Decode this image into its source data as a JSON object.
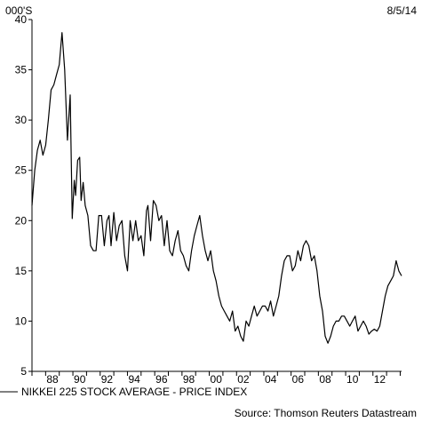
{
  "chart_data": {
    "type": "line",
    "unit_label": "000'S",
    "date_label": "8/5/14",
    "source": "Source: Thomson Reuters Datastream",
    "ylim": [
      5,
      40
    ],
    "yticks": [
      5,
      10,
      15,
      20,
      25,
      30,
      35,
      40
    ],
    "xlim": [
      1987.0,
      2014.1
    ],
    "xticks": [
      {
        "year": 1988,
        "label": "88"
      },
      {
        "year": 1990,
        "label": "90"
      },
      {
        "year": 1992,
        "label": "92"
      },
      {
        "year": 1994,
        "label": "94"
      },
      {
        "year": 1996,
        "label": "96"
      },
      {
        "year": 1998,
        "label": "98"
      },
      {
        "year": 2000,
        "label": "00"
      },
      {
        "year": 2002,
        "label": "02"
      },
      {
        "year": 2004,
        "label": "04"
      },
      {
        "year": 2006,
        "label": "06"
      },
      {
        "year": 2008,
        "label": "08"
      },
      {
        "year": 2010,
        "label": "10"
      },
      {
        "year": 2012,
        "label": "12"
      }
    ],
    "grid": false,
    "legend_position": "bottom-left",
    "series": [
      {
        "name": "NIKKEI 225 STOCK AVERAGE - PRICE INDEX",
        "color": "#000000",
        "x": [
          1987.0,
          1987.2,
          1987.4,
          1987.6,
          1987.8,
          1988.0,
          1988.2,
          1988.4,
          1988.6,
          1988.8,
          1989.0,
          1989.2,
          1989.4,
          1989.6,
          1989.8,
          1989.95,
          1990.1,
          1990.2,
          1990.35,
          1990.5,
          1990.6,
          1990.75,
          1990.9,
          1991.1,
          1991.3,
          1991.5,
          1991.7,
          1991.9,
          1992.1,
          1992.3,
          1992.5,
          1992.65,
          1992.8,
          1993.0,
          1993.2,
          1993.4,
          1993.6,
          1993.8,
          1994.0,
          1994.2,
          1994.4,
          1994.6,
          1994.8,
          1995.0,
          1995.2,
          1995.4,
          1995.5,
          1995.7,
          1995.9,
          1996.1,
          1996.3,
          1996.5,
          1996.7,
          1996.9,
          1997.1,
          1997.3,
          1997.5,
          1997.7,
          1997.9,
          1998.1,
          1998.3,
          1998.5,
          1998.7,
          1998.9,
          1999.1,
          1999.3,
          1999.5,
          1999.7,
          1999.9,
          2000.1,
          2000.3,
          2000.5,
          2000.7,
          2000.9,
          2001.1,
          2001.3,
          2001.5,
          2001.7,
          2001.9,
          2002.1,
          2002.3,
          2002.5,
          2002.7,
          2002.9,
          2003.1,
          2003.3,
          2003.5,
          2003.7,
          2003.9,
          2004.1,
          2004.3,
          2004.5,
          2004.7,
          2004.9,
          2005.1,
          2005.3,
          2005.5,
          2005.7,
          2005.9,
          2006.1,
          2006.3,
          2006.5,
          2006.7,
          2006.9,
          2007.1,
          2007.3,
          2007.5,
          2007.7,
          2007.9,
          2008.1,
          2008.3,
          2008.5,
          2008.7,
          2008.9,
          2009.1,
          2009.3,
          2009.5,
          2009.7,
          2009.9,
          2010.1,
          2010.3,
          2010.5,
          2010.7,
          2010.9,
          2011.1,
          2011.3,
          2011.5,
          2011.7,
          2011.9,
          2012.1,
          2012.3,
          2012.5,
          2012.7,
          2012.9,
          2013.1,
          2013.3,
          2013.5,
          2013.7,
          2013.9,
          2014.1
        ],
        "y": [
          21.5,
          25.0,
          27.0,
          28.0,
          26.5,
          27.5,
          30.0,
          33.0,
          33.5,
          34.5,
          35.5,
          38.7,
          35.0,
          28.0,
          32.5,
          20.2,
          24.0,
          22.5,
          26.0,
          26.3,
          22.0,
          23.8,
          21.5,
          20.5,
          17.5,
          17.0,
          17.0,
          20.5,
          20.5,
          17.5,
          20.0,
          20.5,
          17.5,
          20.8,
          18.0,
          19.5,
          20.0,
          16.5,
          15.0,
          20.0,
          18.0,
          20.0,
          18.0,
          18.5,
          16.5,
          21.0,
          21.5,
          18.0,
          22.0,
          21.5,
          20.0,
          20.5,
          17.5,
          20.0,
          17.0,
          16.5,
          18.0,
          19.0,
          17.0,
          16.5,
          15.5,
          15.0,
          17.0,
          18.5,
          19.5,
          20.5,
          18.5,
          17.0,
          16.0,
          17.0,
          15.0,
          14.0,
          12.5,
          11.5,
          11.0,
          10.5,
          10.0,
          11.0,
          9.0,
          9.5,
          8.5,
          8.0,
          10.0,
          9.5,
          10.5,
          11.5,
          10.5,
          11.0,
          11.5,
          11.5,
          11.0,
          12.0,
          10.5,
          11.5,
          12.5,
          14.5,
          16.0,
          16.5,
          16.5,
          15.0,
          15.5,
          17.0,
          16.0,
          17.5,
          18.0,
          17.5,
          16.0,
          16.5,
          15.0,
          12.5,
          11.0,
          8.5,
          7.8,
          8.5,
          9.5,
          10.0,
          10.0,
          10.5,
          10.5,
          10.0,
          9.5,
          10.0,
          10.5,
          9.0,
          9.5,
          10.0,
          9.5,
          8.7,
          9.0,
          9.2,
          9.0,
          9.5,
          11.0,
          12.5,
          13.5,
          14.0,
          14.5,
          16.0,
          15.0,
          14.5
        ]
      }
    ]
  }
}
